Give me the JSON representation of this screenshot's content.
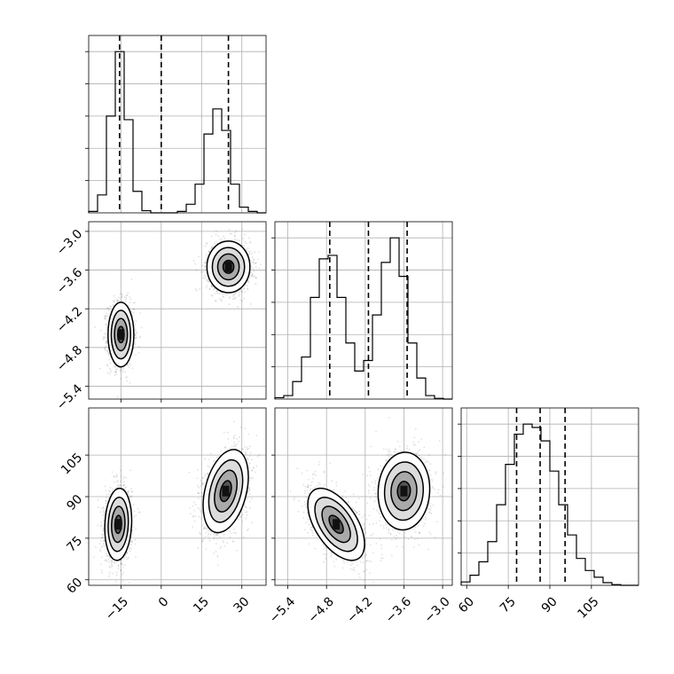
{
  "chart_data": {
    "type": "corner",
    "grid": true,
    "parameters": [
      {
        "range": [
          -27,
          39
        ],
        "ticks": [
          -15,
          0,
          15,
          30
        ],
        "tick_labels": [
          "−15",
          "0",
          "15",
          "30"
        ]
      },
      {
        "range": [
          -5.6,
          -2.85
        ],
        "ticks": [
          -5.4,
          -4.8,
          -4.2,
          -3.6,
          -3.0
        ],
        "tick_labels": [
          "−5.4",
          "−4.8",
          "−4.2",
          "−3.6",
          "−3.0"
        ]
      },
      {
        "range": [
          58,
          122
        ],
        "ticks": [
          60,
          75,
          90,
          105
        ],
        "tick_labels": [
          "60",
          "75",
          "90",
          "105"
        ]
      }
    ],
    "quantiles": [
      [
        -15.5,
        0.0,
        25.0
      ],
      [
        -4.75,
        -4.15,
        -3.55
      ],
      [
        78.0,
        86.5,
        95.5
      ]
    ],
    "histograms": [
      {
        "bin_edges": [
          -27,
          -23.7,
          -20.4,
          -17.1,
          -13.8,
          -10.5,
          -7.2,
          -3.9,
          -0.6,
          2.7,
          6,
          9.3,
          12.6,
          15.9,
          19.2,
          22.5,
          25.8,
          29.1,
          32.4,
          35.7,
          39
        ],
        "counts": [
          2,
          25,
          135,
          225,
          130,
          30,
          3,
          0,
          0,
          0,
          2,
          12,
          40,
          110,
          145,
          115,
          40,
          8,
          2,
          0
        ]
      },
      {
        "bin_edges": [
          -5.6,
          -5.4625,
          -5.325,
          -5.1875,
          -5.05,
          -4.9125,
          -4.775,
          -4.6375,
          -4.5,
          -4.3625,
          -4.225,
          -4.0875,
          -3.95,
          -3.8125,
          -3.675,
          -3.5375,
          -3.4,
          -3.2625,
          -3.125,
          -2.9875,
          -2.85
        ],
        "counts": [
          2,
          5,
          25,
          60,
          145,
          200,
          205,
          145,
          80,
          40,
          55,
          120,
          195,
          230,
          175,
          80,
          30,
          5,
          1,
          0
        ]
      },
      {
        "bin_edges": [
          58,
          61.2,
          64.4,
          67.6,
          70.8,
          74,
          77.2,
          80.4,
          83.6,
          86.8,
          90,
          93.2,
          96.4,
          99.6,
          102.8,
          106,
          109.2,
          112.4,
          115.6,
          118.8,
          122
        ],
        "counts": [
          5,
          15,
          35,
          65,
          120,
          180,
          225,
          240,
          235,
          215,
          170,
          120,
          75,
          40,
          22,
          12,
          4,
          1,
          0,
          0
        ]
      }
    ],
    "pairs": [
      {
        "x_param": 0,
        "y_param": 1,
        "clusters": [
          {
            "mean_x": -15,
            "mean_y": -4.6,
            "sd_x": 2.4,
            "sd_y": 0.25,
            "rho": 0.0
          },
          {
            "mean_x": 25,
            "mean_y": -3.55,
            "sd_x": 4.0,
            "sd_y": 0.2,
            "rho": 0.0
          }
        ]
      },
      {
        "x_param": 0,
        "y_param": 2,
        "clusters": [
          {
            "mean_x": -16,
            "mean_y": 80,
            "sd_x": 2.5,
            "sd_y": 6.5,
            "rho": 0.1
          },
          {
            "mean_x": 24,
            "mean_y": 92,
            "sd_x": 4.2,
            "sd_y": 7.5,
            "rho": 0.35
          }
        ]
      },
      {
        "x_param": 1,
        "y_param": 2,
        "clusters": [
          {
            "mean_x": -4.65,
            "mean_y": 80,
            "sd_x": 0.22,
            "sd_y": 6.5,
            "rho": -0.55
          },
          {
            "mean_x": -3.6,
            "mean_y": 92,
            "sd_x": 0.2,
            "sd_y": 7.0,
            "rho": 0.05
          }
        ]
      }
    ]
  }
}
